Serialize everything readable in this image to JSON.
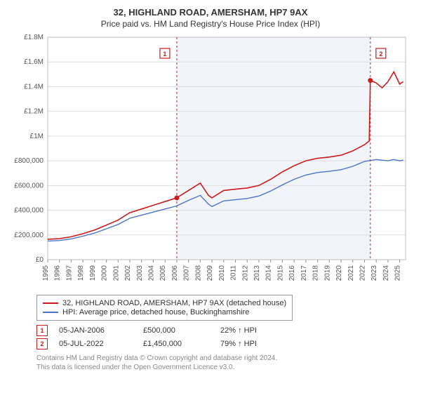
{
  "title": "32, HIGHLAND ROAD, AMERSHAM, HP7 9AX",
  "subtitle": "Price paid vs. HM Land Registry's House Price Index (HPI)",
  "chart": {
    "type": "line",
    "background_color": "#ffffff",
    "shaded_region_color": "#f1f4f9",
    "shaded_xstart": 2006.0,
    "shaded_xend": 2022.5,
    "grid_color": "#dddddd",
    "border_color": "#bbbbbb",
    "xlim": [
      1995,
      2025.5
    ],
    "ylim": [
      0,
      1800000
    ],
    "ytick_step": 200000,
    "ytick_labels": [
      "£0",
      "£200,000",
      "£400,000",
      "£600,000",
      "£800,000",
      "£1M",
      "£1.2M",
      "£1.4M",
      "£1.6M",
      "£1.8M"
    ],
    "xticks": [
      1995,
      1996,
      1997,
      1998,
      1999,
      2000,
      2001,
      2002,
      2003,
      2004,
      2005,
      2006,
      2007,
      2008,
      2009,
      2010,
      2011,
      2012,
      2013,
      2014,
      2015,
      2016,
      2017,
      2018,
      2019,
      2020,
      2021,
      2022,
      2023,
      2024,
      2025
    ],
    "series": [
      {
        "name": "property",
        "label": "32, HIGHLAND ROAD, AMERSHAM, HP7 9AX (detached house)",
        "color": "#cc1b1b",
        "line_width": 1.6,
        "points": [
          [
            1995,
            165000
          ],
          [
            1996,
            170000
          ],
          [
            1997,
            185000
          ],
          [
            1998,
            210000
          ],
          [
            1999,
            240000
          ],
          [
            2000,
            280000
          ],
          [
            2001,
            320000
          ],
          [
            2002,
            380000
          ],
          [
            2003,
            410000
          ],
          [
            2004,
            440000
          ],
          [
            2005,
            470000
          ],
          [
            2006,
            500000
          ],
          [
            2007,
            560000
          ],
          [
            2008,
            620000
          ],
          [
            2008.7,
            520000
          ],
          [
            2009,
            500000
          ],
          [
            2010,
            560000
          ],
          [
            2011,
            570000
          ],
          [
            2012,
            580000
          ],
          [
            2013,
            600000
          ],
          [
            2014,
            650000
          ],
          [
            2015,
            710000
          ],
          [
            2016,
            760000
          ],
          [
            2017,
            800000
          ],
          [
            2018,
            820000
          ],
          [
            2019,
            830000
          ],
          [
            2020,
            845000
          ],
          [
            2021,
            880000
          ],
          [
            2022,
            930000
          ],
          [
            2022.4,
            960000
          ],
          [
            2022.5,
            1450000
          ],
          [
            2023,
            1430000
          ],
          [
            2023.5,
            1390000
          ],
          [
            2024,
            1440000
          ],
          [
            2024.5,
            1520000
          ],
          [
            2025,
            1420000
          ],
          [
            2025.3,
            1440000
          ]
        ]
      },
      {
        "name": "hpi",
        "label": "HPI: Average price, detached house, Buckinghamshire",
        "color": "#4a74c9",
        "line_width": 1.4,
        "points": [
          [
            1995,
            150000
          ],
          [
            1996,
            155000
          ],
          [
            1997,
            168000
          ],
          [
            1998,
            190000
          ],
          [
            1999,
            215000
          ],
          [
            2000,
            250000
          ],
          [
            2001,
            285000
          ],
          [
            2002,
            335000
          ],
          [
            2003,
            360000
          ],
          [
            2004,
            385000
          ],
          [
            2005,
            410000
          ],
          [
            2006,
            435000
          ],
          [
            2007,
            480000
          ],
          [
            2008,
            520000
          ],
          [
            2008.7,
            450000
          ],
          [
            2009,
            430000
          ],
          [
            2010,
            475000
          ],
          [
            2011,
            485000
          ],
          [
            2012,
            495000
          ],
          [
            2013,
            515000
          ],
          [
            2014,
            555000
          ],
          [
            2015,
            605000
          ],
          [
            2016,
            650000
          ],
          [
            2017,
            685000
          ],
          [
            2018,
            705000
          ],
          [
            2019,
            715000
          ],
          [
            2020,
            728000
          ],
          [
            2021,
            755000
          ],
          [
            2022,
            795000
          ],
          [
            2023,
            810000
          ],
          [
            2024,
            800000
          ],
          [
            2024.5,
            810000
          ],
          [
            2025,
            800000
          ],
          [
            2025.3,
            805000
          ]
        ]
      }
    ],
    "sale_markers": [
      {
        "n": 1,
        "x": 2006.0,
        "y": 500000,
        "color": "#cc1b1b"
      },
      {
        "n": 2,
        "x": 2022.5,
        "y": 1450000,
        "color": "#cc1b1b"
      }
    ]
  },
  "legend": {
    "items": [
      {
        "color": "#cc1b1b",
        "label": "32, HIGHLAND ROAD, AMERSHAM, HP7 9AX (detached house)"
      },
      {
        "color": "#4a74c9",
        "label": "HPI: Average price, detached house, Buckinghamshire"
      }
    ]
  },
  "sales": [
    {
      "n": "1",
      "date": "05-JAN-2006",
      "price": "£500,000",
      "pct": "22% ↑ HPI",
      "color": "#cc1b1b"
    },
    {
      "n": "2",
      "date": "05-JUL-2022",
      "price": "£1,450,000",
      "pct": "79% ↑ HPI",
      "color": "#cc1b1b"
    }
  ],
  "footnote1": "Contains HM Land Registry data © Crown copyright and database right 2024.",
  "footnote2": "This data is licensed under the Open Government Licence v3.0."
}
